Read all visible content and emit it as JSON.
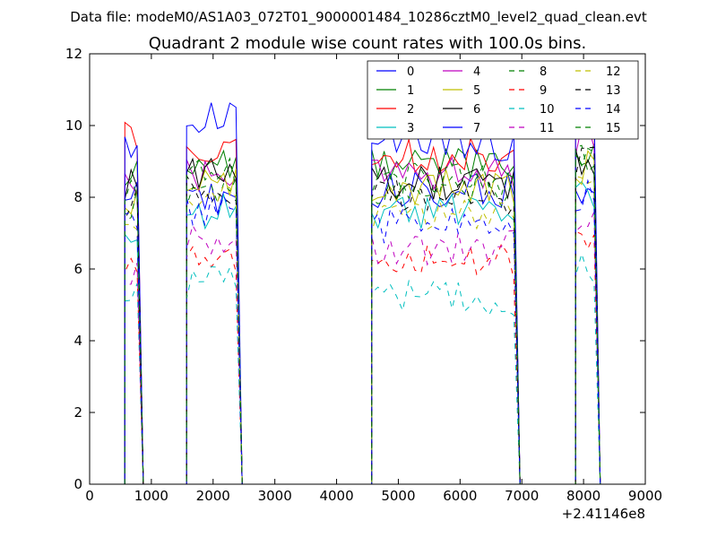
{
  "chart_data": {
    "type": "line",
    "suptitle": "Data file: modeM0/AS1A03_072T01_9000001484_10286cztM0_level2_quad_clean.evt",
    "title": "Quadrant 2 module wise count rates with 100.0s bins.",
    "xlabel": "",
    "ylabel": "",
    "x_offset_label": "+2.41146e8",
    "xlim": [
      0,
      9000
    ],
    "ylim": [
      0,
      12
    ],
    "xticks": [
      0,
      1000,
      2000,
      3000,
      4000,
      5000,
      6000,
      7000,
      8000,
      9000
    ],
    "xtick_labels": [
      "0",
      "1000",
      "2000",
      "3000",
      "4000",
      "5000",
      "6000",
      "7000",
      "8000",
      "9000"
    ],
    "yticks": [
      0,
      2,
      4,
      6,
      8,
      10,
      12
    ],
    "ytick_labels": [
      "0",
      "2",
      "4",
      "6",
      "8",
      "10",
      "12"
    ],
    "legend_position": "top-right",
    "legend_columns": 4,
    "segments": [
      {
        "x_start": 570,
        "x_end": 870
      },
      {
        "x_start": 1570,
        "x_end": 2470
      },
      {
        "x_start": 4570,
        "x_end": 6970
      },
      {
        "x_start": 7870,
        "x_end": 8270
      }
    ],
    "series": [
      {
        "name": "0",
        "color": "#0000ff",
        "dash": "solid",
        "levels": [
          8.0,
          8.0,
          8.2,
          8.0
        ]
      },
      {
        "name": "1",
        "color": "#008000",
        "dash": "solid",
        "levels": [
          8.8,
          9.0,
          9.0,
          9.2
        ]
      },
      {
        "name": "2",
        "color": "#ff0000",
        "dash": "solid",
        "levels": [
          9.8,
          9.3,
          9.2,
          10.2
        ]
      },
      {
        "name": "3",
        "color": "#00bfbf",
        "dash": "solid",
        "levels": [
          7.0,
          7.6,
          7.6,
          8.0
        ]
      },
      {
        "name": "4",
        "color": "#bf00bf",
        "dash": "solid",
        "levels": [
          8.3,
          8.6,
          8.7,
          9.5
        ]
      },
      {
        "name": "5",
        "color": "#bfbf00",
        "dash": "solid",
        "levels": [
          7.8,
          8.5,
          8.3,
          8.8
        ]
      },
      {
        "name": "6",
        "color": "#000000",
        "dash": "solid",
        "levels": [
          8.4,
          8.7,
          8.4,
          9.0
        ]
      },
      {
        "name": "7",
        "color": "#0000ff",
        "dash": "solid",
        "levels": [
          9.5,
          10.2,
          9.5,
          10.8
        ]
      },
      {
        "name": "8",
        "color": "#008000",
        "dash": "dash",
        "levels": [
          7.8,
          8.2,
          8.2,
          9.2
        ]
      },
      {
        "name": "9",
        "color": "#ff0000",
        "dash": "dash",
        "levels": [
          6.1,
          6.4,
          6.2,
          7.0
        ]
      },
      {
        "name": "10",
        "color": "#00bfbf",
        "dash": "dash",
        "levels": [
          5.4,
          5.6,
          5.2,
          6.0
        ]
      },
      {
        "name": "11",
        "color": "#bf00bf",
        "dash": "dash",
        "levels": [
          6.0,
          6.8,
          6.6,
          7.4
        ]
      },
      {
        "name": "12",
        "color": "#bfbf00",
        "dash": "dash",
        "levels": [
          7.5,
          8.0,
          7.5,
          8.5
        ]
      },
      {
        "name": "13",
        "color": "#000000",
        "dash": "dash",
        "levels": [
          7.8,
          8.2,
          8.0,
          9.0
        ]
      },
      {
        "name": "14",
        "color": "#0000ff",
        "dash": "dash",
        "levels": [
          7.2,
          7.6,
          7.2,
          8.0
        ]
      },
      {
        "name": "15",
        "color": "#008000",
        "dash": "dash",
        "levels": [
          8.0,
          8.6,
          8.5,
          9.2
        ]
      }
    ]
  }
}
